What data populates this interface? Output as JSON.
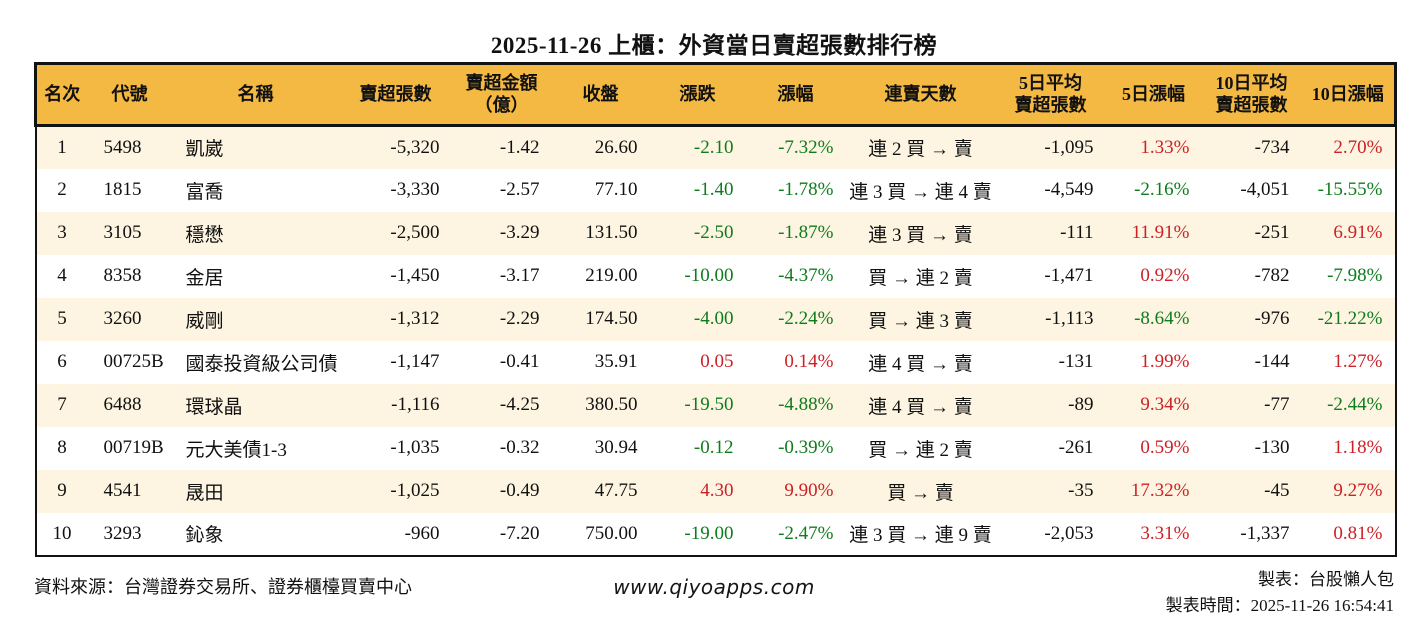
{
  "title": "2025-11-26 上櫃：外資當日賣超張數排行榜",
  "colors": {
    "up": "#cc2127",
    "down": "#0e7c1d",
    "header_bg": "#f4b942",
    "row_alt_bg": "#fdf5e1",
    "border": "#121212"
  },
  "table": {
    "columns": [
      "名次",
      "代號",
      "名稱",
      "賣超張數",
      "賣超金額\n（億）",
      "收盤",
      "漲跌",
      "漲幅",
      "連賣天數",
      "5日平均\n賣超張數",
      "5日漲幅",
      "10日平均\n賣超張數",
      "10日漲幅"
    ],
    "column_keys": [
      "rank",
      "code",
      "name",
      "net-sell-qty",
      "net-sell-amount",
      "close",
      "change",
      "change-pct",
      "streak",
      "avg5-net-sell",
      "pct5",
      "avg10-net-sell",
      "pct10"
    ],
    "rows": [
      [
        "1",
        "5498",
        "凱崴",
        "-5,320",
        "-1.42",
        "26.60",
        "-2.10",
        "-7.32%",
        "連 2 買 → 賣",
        "-1,095",
        "1.33%",
        "-734",
        "2.70%"
      ],
      [
        "2",
        "1815",
        "富喬",
        "-3,330",
        "-2.57",
        "77.10",
        "-1.40",
        "-1.78%",
        "連 3 買 → 連 4 賣",
        "-4,549",
        "-2.16%",
        "-4,051",
        "-15.55%"
      ],
      [
        "3",
        "3105",
        "穩懋",
        "-2,500",
        "-3.29",
        "131.50",
        "-2.50",
        "-1.87%",
        "連 3 買 → 賣",
        "-111",
        "11.91%",
        "-251",
        "6.91%"
      ],
      [
        "4",
        "8358",
        "金居",
        "-1,450",
        "-3.17",
        "219.00",
        "-10.00",
        "-4.37%",
        "買 → 連 2 賣",
        "-1,471",
        "0.92%",
        "-782",
        "-7.98%"
      ],
      [
        "5",
        "3260",
        "威剛",
        "-1,312",
        "-2.29",
        "174.50",
        "-4.00",
        "-2.24%",
        "買 → 連 3 賣",
        "-1,113",
        "-8.64%",
        "-976",
        "-21.22%"
      ],
      [
        "6",
        "00725B",
        "國泰投資級公司債",
        "-1,147",
        "-0.41",
        "35.91",
        "0.05",
        "0.14%",
        "連 4 買 → 賣",
        "-131",
        "1.99%",
        "-144",
        "1.27%"
      ],
      [
        "7",
        "6488",
        "環球晶",
        "-1,116",
        "-4.25",
        "380.50",
        "-19.50",
        "-4.88%",
        "連 4 買 → 賣",
        "-89",
        "9.34%",
        "-77",
        "-2.44%"
      ],
      [
        "8",
        "00719B",
        "元大美債1-3",
        "-1,035",
        "-0.32",
        "30.94",
        "-0.12",
        "-0.39%",
        "買 → 連 2 賣",
        "-261",
        "0.59%",
        "-130",
        "1.18%"
      ],
      [
        "9",
        "4541",
        "晟田",
        "-1,025",
        "-0.49",
        "47.75",
        "4.30",
        "9.90%",
        "買 → 賣",
        "-35",
        "17.32%",
        "-45",
        "9.27%"
      ],
      [
        "10",
        "3293",
        "鈊象",
        "-960",
        "-7.20",
        "750.00",
        "-19.00",
        "-2.47%",
        "連 3 買 → 連 9 賣",
        "-2,053",
        "3.31%",
        "-1,337",
        "0.81%"
      ]
    ]
  },
  "footer": {
    "source": "資料來源：台灣證券交易所、證券櫃檯買賣中心",
    "site": "www.qiyoapps.com",
    "author": "製表：台股懶人包",
    "generated": "製表時間：2025-11-26 16:54:41"
  }
}
